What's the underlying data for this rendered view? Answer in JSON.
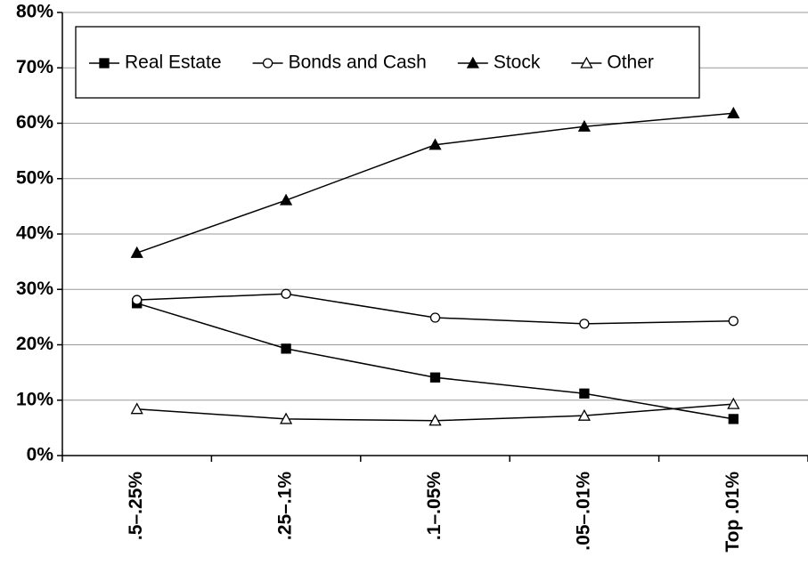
{
  "chart_data": {
    "type": "line",
    "categories": [
      ".5–.25%",
      ".25–.1%",
      ".1–.05%",
      ".05–.01%",
      "Top .01%"
    ],
    "series": [
      {
        "name": "Real Estate",
        "color": "#000000",
        "marker": "square",
        "filled": true,
        "values": [
          27.5,
          19.3,
          14.1,
          11.2,
          6.6
        ]
      },
      {
        "name": "Bonds and Cash",
        "color": "#000000",
        "marker": "circle",
        "filled": false,
        "values": [
          28.1,
          29.2,
          24.9,
          23.8,
          24.3
        ]
      },
      {
        "name": "Stock",
        "color": "#000000",
        "marker": "triangle",
        "filled": true,
        "values": [
          36.6,
          46.1,
          56.1,
          59.4,
          61.8
        ]
      },
      {
        "name": "Other",
        "color": "#000000",
        "marker": "triangle",
        "filled": false,
        "values": [
          8.4,
          6.6,
          6.3,
          7.2,
          9.3
        ]
      }
    ],
    "ylim": [
      0,
      80
    ],
    "yticks": [
      {
        "value": 0,
        "label": "0%"
      },
      {
        "value": 10,
        "label": "10%"
      },
      {
        "value": 20,
        "label": "20%"
      },
      {
        "value": 30,
        "label": "30%"
      },
      {
        "value": 40,
        "label": "40%"
      },
      {
        "value": 50,
        "label": "50%"
      },
      {
        "value": 60,
        "label": "60%"
      },
      {
        "value": 70,
        "label": "70%"
      },
      {
        "value": 80,
        "label": "80%"
      }
    ],
    "grid": true
  }
}
